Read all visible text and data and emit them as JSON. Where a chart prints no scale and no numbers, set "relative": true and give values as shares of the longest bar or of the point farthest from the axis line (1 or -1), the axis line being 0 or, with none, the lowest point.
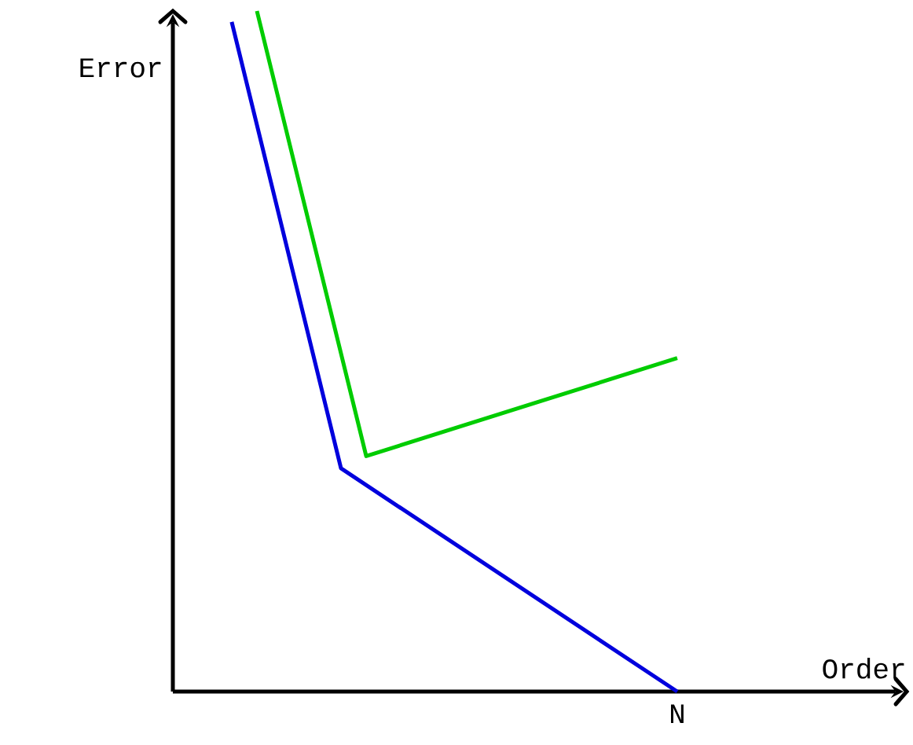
{
  "chart_data": {
    "type": "line",
    "relative": true,
    "ylabel": "Error",
    "categories": [
      null,
      null,
      null,
      null,
      null,
      null,
      null,
      null,
      null,
      null,
      null,
      null,
      null,
      null,
      null,
      null,
      null,
      null,
      null,
      null,
      null,
      null,
      null,
      null,
      null,
      null,
      null,
      null,
      null,
      null,
      null,
      null,
      null,
      null,
      null,
      null,
      null,
      null,
      null,
      null,
      null,
      null,
      null,
      null,
      null,
      null,
      null,
      null,
      null,
      null,
      null,
      null,
      null,
      null,
      null,
      null,
      null,
      null,
      null,
      null,
      null
    ],
    "annotations": [
      "N",
      "Order"
    ],
    "series": [
      {
        "color": "#0000dd",
        "values": [
          null,
          null,
          null,
          null,
          null,
          null,
          null,
          0.984,
          null,
          null,
          null,
          null,
          null,
          null,
          null,
          null,
          null,
          null,
          null,
          null,
          0.328,
          null,
          null,
          null,
          null,
          null,
          null,
          null,
          null,
          null,
          null,
          null,
          null,
          null,
          null,
          null,
          null,
          null,
          null,
          null,
          null,
          null,
          null,
          null,
          null,
          null,
          null,
          null,
          null,
          null,
          null,
          null,
          null,
          null,
          null,
          null,
          null,
          null,
          null,
          null,
          0
        ]
      },
      {
        "color": "#00cc00",
        "values": [
          null,
          null,
          null,
          null,
          null,
          null,
          null,
          null,
          null,
          null,
          1,
          null,
          null,
          null,
          null,
          null,
          null,
          null,
          null,
          null,
          null,
          null,
          null,
          0.346,
          null,
          null,
          null,
          null,
          null,
          null,
          null,
          null,
          null,
          null,
          null,
          null,
          null,
          null,
          null,
          null,
          null,
          null,
          null,
          null,
          null,
          null,
          null,
          null,
          null,
          null,
          null,
          null,
          null,
          null,
          null,
          null,
          null,
          null,
          null,
          null,
          0.49
        ]
      }
    ],
    "marker": "none",
    "line_style": "solid"
  }
}
